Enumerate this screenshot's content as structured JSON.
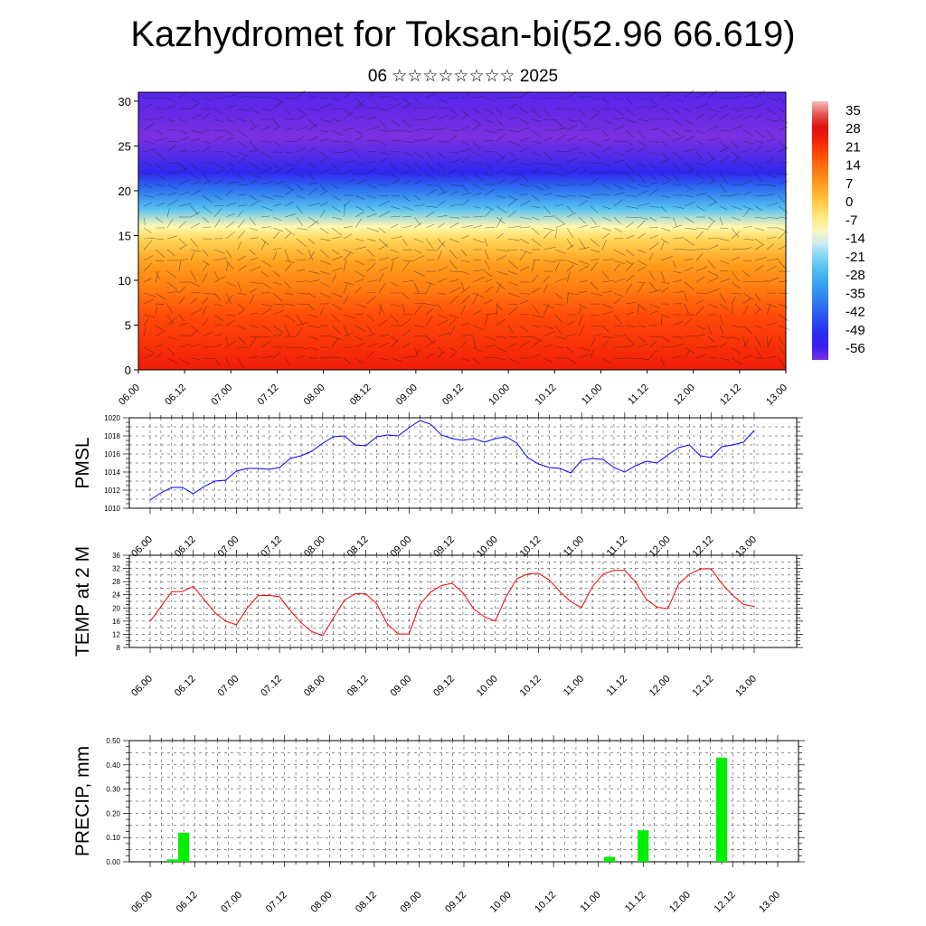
{
  "title": "Kazhydromet for Toksan-bi(52.96 66.619)",
  "subtitle": "06 ☆☆☆☆☆☆☆☆ 2025",
  "time_ticks": [
    "06.00",
    "06.12",
    "07.00",
    "07.12",
    "08.00",
    "08.12",
    "09.00",
    "09.12",
    "10.00",
    "10.12",
    "11.00",
    "11.12",
    "12.00",
    "12.12",
    "13.00"
  ],
  "chart_data": [
    {
      "type": "heatmap",
      "name_hint": "cross-section",
      "ylim": [
        0,
        31
      ],
      "yticks": [
        0,
        5,
        10,
        15,
        20,
        25,
        30
      ],
      "colorbar_labels": [
        "35",
        "28",
        "21",
        "14",
        "7",
        "0",
        "-7",
        "-14",
        "-21",
        "-28",
        "-35",
        "-42",
        "-49",
        "-56"
      ],
      "colorbar_range": [
        -60,
        38
      ],
      "temperature_profile": [
        {
          "level": 0,
          "value": 24
        },
        {
          "level": 3,
          "value": 21
        },
        {
          "level": 6,
          "value": 18
        },
        {
          "level": 9,
          "value": 12
        },
        {
          "level": 12,
          "value": 6
        },
        {
          "level": 14.5,
          "value": -2
        },
        {
          "level": 16,
          "value": -10
        },
        {
          "level": 18,
          "value": -25
        },
        {
          "level": 20,
          "value": -38
        },
        {
          "level": 22,
          "value": -52
        },
        {
          "level": 26,
          "value": -60
        },
        {
          "level": 31,
          "value": -57
        }
      ]
    },
    {
      "type": "line",
      "ylabel": "PMSL",
      "ylim": [
        1010,
        1020
      ],
      "yticks": [
        1010,
        1012,
        1014,
        1016,
        1018,
        1020
      ],
      "color": "#0000ff",
      "x": [
        0,
        1,
        2,
        3,
        4,
        5,
        6,
        7,
        8,
        9,
        10,
        11,
        12,
        13,
        14,
        15,
        16,
        17,
        18,
        19,
        20,
        21,
        22,
        23,
        24,
        25,
        26,
        27,
        28,
        29,
        30,
        31,
        32,
        33,
        34,
        35,
        36,
        37,
        38,
        39,
        40,
        41,
        42,
        43,
        44,
        45,
        46,
        47,
        48,
        49,
        50,
        51,
        52,
        53,
        54,
        55,
        56
      ],
      "values": [
        1010.9,
        1011.7,
        1012.3,
        1012.3,
        1011.6,
        1012.4,
        1013.0,
        1013.1,
        1014.1,
        1014.4,
        1014.4,
        1014.3,
        1014.5,
        1015.5,
        1015.8,
        1016.3,
        1017.2,
        1017.9,
        1018.0,
        1017.0,
        1016.9,
        1017.9,
        1018.1,
        1018.0,
        1018.9,
        1019.7,
        1019.3,
        1018.1,
        1017.7,
        1017.5,
        1017.7,
        1017.3,
        1017.7,
        1017.9,
        1017.2,
        1015.6,
        1014.9,
        1014.5,
        1014.4,
        1013.9,
        1015.3,
        1015.5,
        1015.4,
        1014.5,
        1014.0,
        1014.7,
        1015.2,
        1015.0,
        1015.9,
        1016.7,
        1017.0,
        1015.8,
        1015.6,
        1016.8,
        1017.0,
        1017.3,
        1018.6
      ]
    },
    {
      "type": "line",
      "ylabel": "TEMP at 2 M",
      "ylim": [
        8,
        36
      ],
      "yticks": [
        8,
        12,
        16,
        20,
        24,
        28,
        32,
        36
      ],
      "color": "#ff0000",
      "x": [
        0,
        2,
        3,
        4,
        5,
        6,
        7,
        8,
        9,
        10,
        11,
        12,
        13,
        14,
        15,
        16,
        17,
        18,
        19,
        20,
        21,
        22,
        23,
        24,
        25,
        26,
        27,
        28,
        29,
        30,
        31,
        32,
        33,
        34,
        35,
        36,
        37,
        38,
        39,
        40,
        41,
        42,
        43,
        44,
        45,
        46,
        47,
        48,
        49,
        50,
        51,
        52,
        53,
        54,
        55,
        56
      ],
      "values": [
        15.9,
        24.9,
        25.0,
        26.6,
        22.6,
        18.6,
        16.0,
        14.9,
        19.9,
        23.7,
        23.8,
        23.4,
        19.2,
        15.5,
        12.8,
        11.6,
        17.0,
        22.3,
        24.3,
        24.3,
        21.3,
        15.1,
        12.1,
        12.1,
        21.0,
        24.8,
        26.8,
        27.5,
        24.6,
        19.7,
        17.3,
        16.0,
        23.4,
        28.9,
        30.3,
        30.5,
        28.5,
        24.9,
        21.9,
        20.1,
        26.5,
        30.3,
        31.4,
        31.4,
        27.9,
        22.6,
        20.2,
        19.8,
        27.3,
        30.2,
        31.8,
        31.9,
        27.4,
        23.9,
        21.1,
        20.4
      ]
    },
    {
      "type": "bar",
      "ylabel": "PRECIP, mm",
      "ylim": [
        0,
        0.5
      ],
      "yticks": [
        "0.00",
        "0.10",
        "0.20",
        "0.30",
        "0.40",
        "0.50"
      ],
      "color": "#00ee00",
      "x": [
        2,
        3,
        41,
        44,
        51
      ],
      "values": [
        0.01,
        0.12,
        0.02,
        0.13,
        0.43
      ]
    }
  ]
}
